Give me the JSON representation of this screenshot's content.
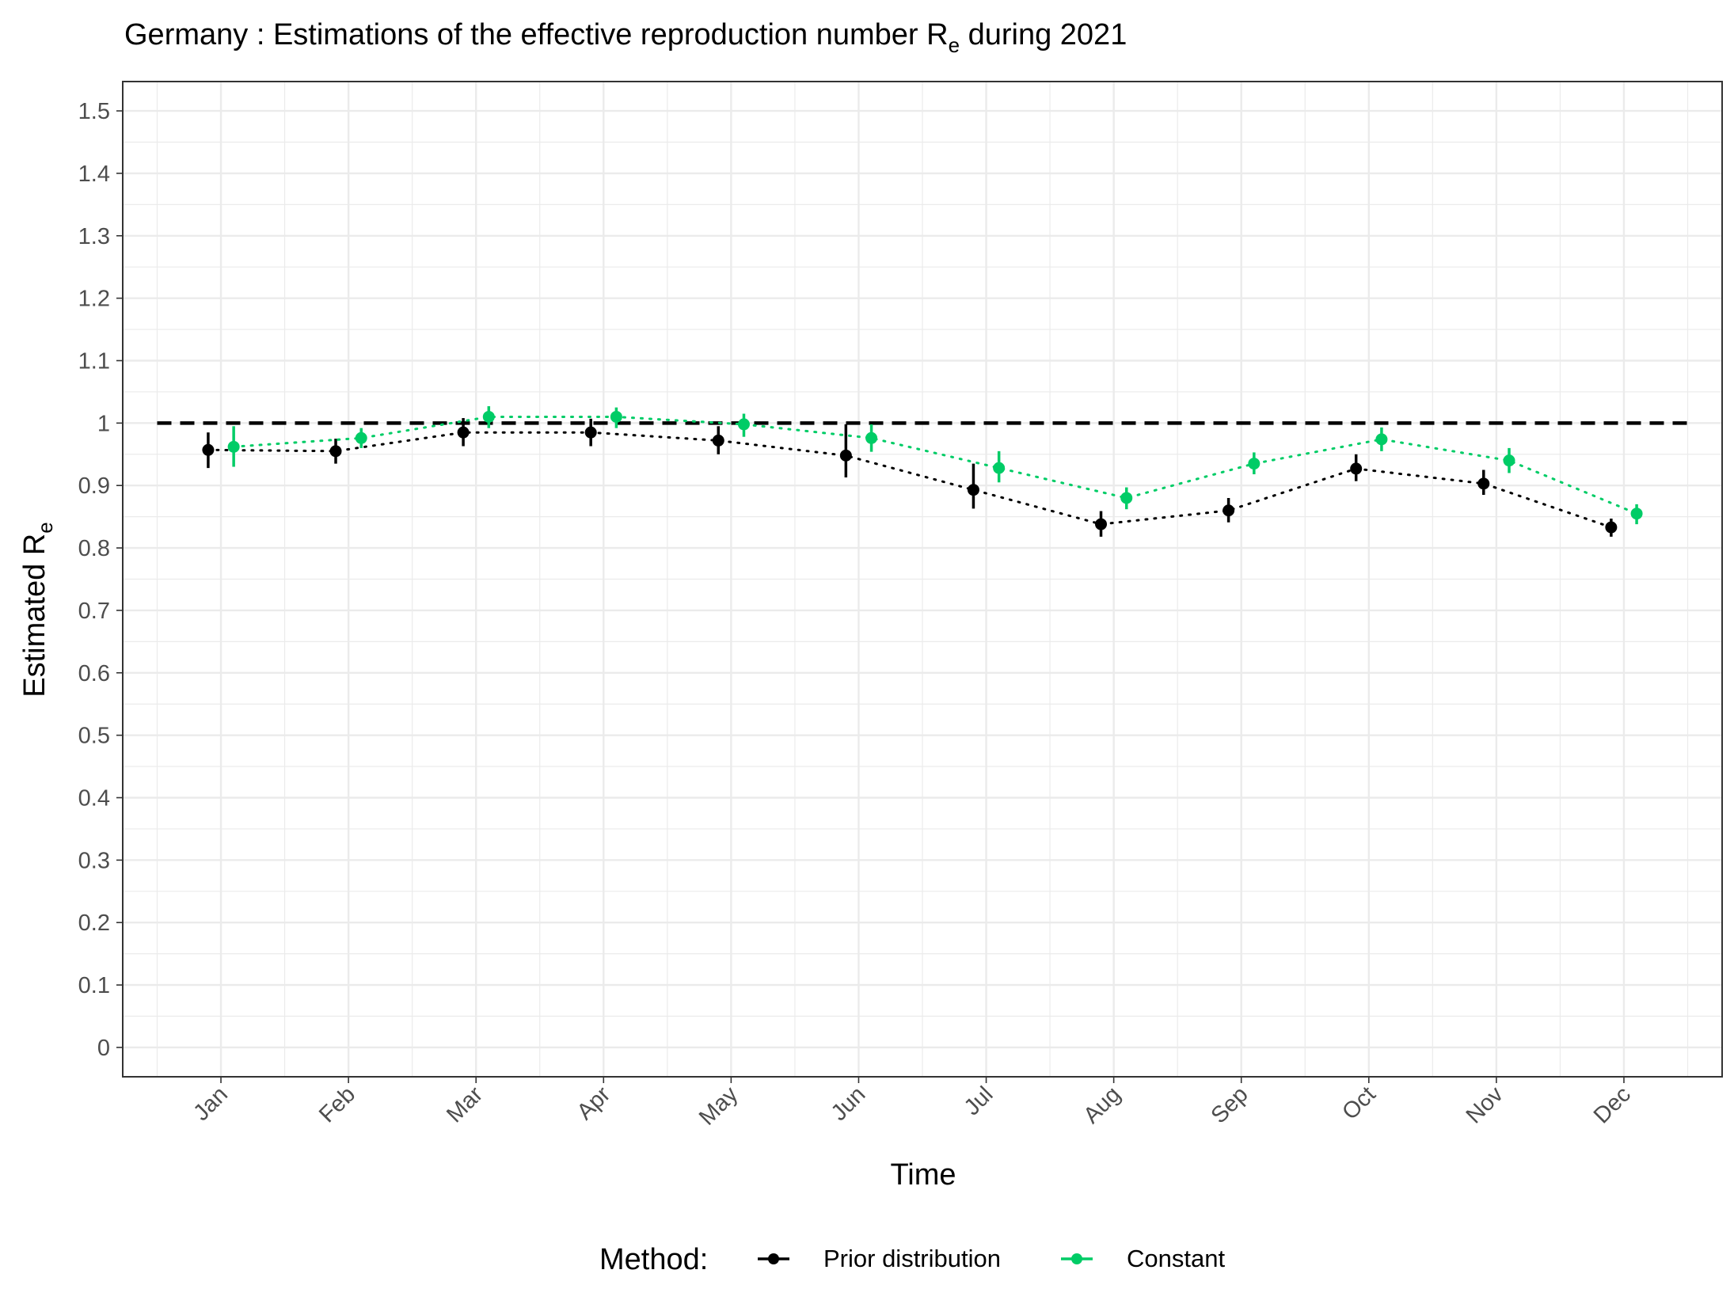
{
  "chart_data": {
    "type": "line",
    "title_main": "Germany : Estimations of the effective reproduction number R",
    "title_sub": "e",
    "title_end": " during 2021",
    "xlabel": "Time",
    "ylabel_main": "Estimated R",
    "ylabel_sub": "e",
    "categories": [
      "Jan",
      "Feb",
      "Mar",
      "Apr",
      "May",
      "Jun",
      "Jul",
      "Aug",
      "Sep",
      "Oct",
      "Nov",
      "Dec"
    ],
    "yticks": [
      "0",
      "0.1",
      "0.2",
      "0.3",
      "0.4",
      "0.5",
      "0.6",
      "0.7",
      "0.8",
      "0.9",
      "1",
      "1.1",
      "1.2",
      "1.3",
      "1.4",
      "1.5"
    ],
    "ylim": [
      -0.047,
      1.547
    ],
    "reference_line": 1,
    "legend": {
      "title": "Method:",
      "placement": "bottom"
    },
    "grid": true,
    "series": [
      {
        "name": "Prior distribution",
        "color": "#000000",
        "values": [
          0.957,
          0.955,
          0.985,
          0.985,
          0.972,
          0.948,
          0.893,
          0.838,
          0.86,
          0.927,
          0.903,
          0.833
        ],
        "lower": [
          0.928,
          0.935,
          0.963,
          0.963,
          0.95,
          0.913,
          0.863,
          0.818,
          0.841,
          0.907,
          0.885,
          0.818
        ],
        "upper": [
          0.985,
          0.975,
          1.008,
          1.007,
          0.995,
          0.998,
          0.935,
          0.859,
          0.88,
          0.95,
          0.925,
          0.847
        ]
      },
      {
        "name": "Constant",
        "color": "#00CC66",
        "values": [
          0.962,
          0.976,
          1.01,
          1.01,
          0.998,
          0.976,
          0.928,
          0.88,
          0.935,
          0.974,
          0.94,
          0.855
        ],
        "lower": [
          0.93,
          0.96,
          0.992,
          0.992,
          0.978,
          0.954,
          0.905,
          0.862,
          0.918,
          0.955,
          0.92,
          0.838
        ],
        "upper": [
          0.995,
          0.992,
          1.027,
          1.025,
          1.015,
          0.998,
          0.955,
          0.897,
          0.953,
          0.993,
          0.96,
          0.87
        ]
      }
    ]
  }
}
